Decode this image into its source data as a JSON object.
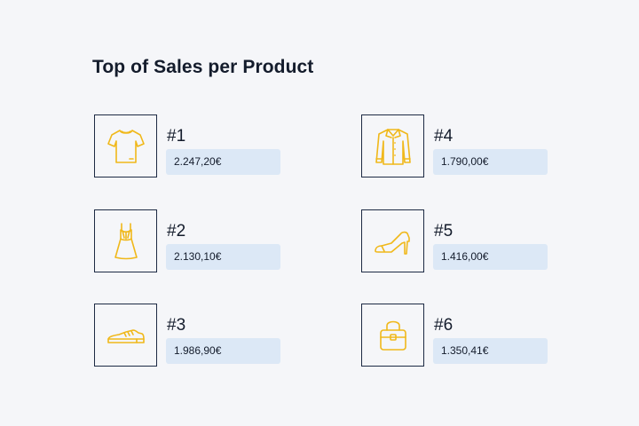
{
  "header": {
    "title": "Top of Sales per Product"
  },
  "colors": {
    "accent": "#f0b81a",
    "border": "#1d2a44",
    "badge": "#dce8f6",
    "text": "#141c2c"
  },
  "products": [
    {
      "rank": "#1",
      "amount": "2.247,20€",
      "icon": "tshirt-icon"
    },
    {
      "rank": "#2",
      "amount": "2.130,10€",
      "icon": "dress-icon"
    },
    {
      "rank": "#3",
      "amount": "1.986,90€",
      "icon": "shoe-icon"
    },
    {
      "rank": "#4",
      "amount": "1.790,00€",
      "icon": "shirt-icon"
    },
    {
      "rank": "#5",
      "amount": "1.416,00€",
      "icon": "high-heel-icon"
    },
    {
      "rank": "#6",
      "amount": "1.350,41€",
      "icon": "handbag-icon"
    }
  ]
}
